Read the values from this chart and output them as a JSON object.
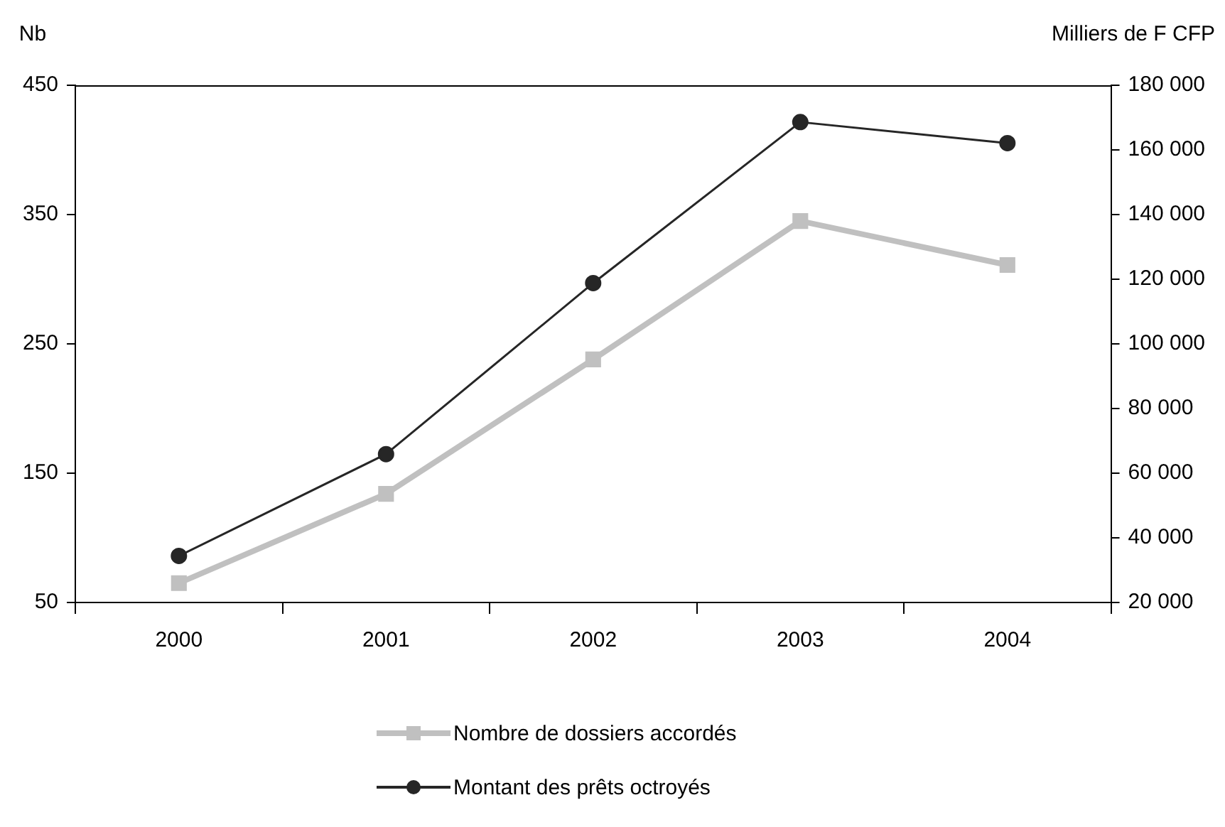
{
  "chart_data": {
    "type": "line",
    "ylabel": "Nb",
    "y2label": "Milliers de F CFP",
    "categories": [
      "2000",
      "2001",
      "2002",
      "2003",
      "2004"
    ],
    "series": [
      {
        "name": "Nombre de dossiers accordés",
        "color": "#c0c0c0",
        "values": [
          65,
          134,
          238,
          345,
          311
        ],
        "marker": "square"
      },
      {
        "name": "Montant des prêts octroyés",
        "color": "#262626",
        "values": [
          34400,
          65900,
          118800,
          168600,
          162100
        ],
        "axis": "y2",
        "marker": "circle"
      }
    ],
    "ylim": [
      50,
      450
    ],
    "yticks": [
      {
        "value": 50,
        "label": "50"
      },
      {
        "value": 150,
        "label": "150"
      },
      {
        "value": 250,
        "label": "250"
      },
      {
        "value": 350,
        "label": "350"
      },
      {
        "value": 450,
        "label": "450"
      }
    ],
    "y2lim": [
      20000,
      180000
    ],
    "y2ticks": [
      {
        "value": 20000,
        "label": "20 000"
      },
      {
        "value": 40000,
        "label": "40 000"
      },
      {
        "value": 60000,
        "label": "60 000"
      },
      {
        "value": 80000,
        "label": "80 000"
      },
      {
        "value": 100000,
        "label": "100 000"
      },
      {
        "value": 120000,
        "label": "120 000"
      },
      {
        "value": 140000,
        "label": "140 000"
      },
      {
        "value": 160000,
        "label": "160 000"
      },
      {
        "value": 180000,
        "label": "180 000"
      }
    ],
    "grid": false,
    "legend": "bottom"
  }
}
